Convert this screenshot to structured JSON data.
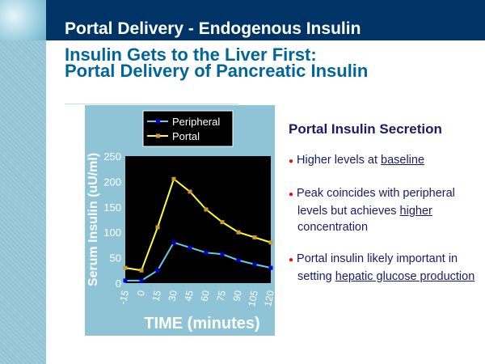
{
  "header": {
    "title": "Portal Delivery - Endogenous Insulin"
  },
  "subtitle": {
    "line1": "Insulin Gets to the Liver First:",
    "line2": "Portal Delivery of Pancreatic Insulin"
  },
  "chart_data": {
    "type": "line",
    "xlabel": "TIME (minutes)",
    "ylabel": "Serum Insulin (uU/ml)",
    "categories": [
      "-15",
      "0",
      "15",
      "30",
      "45",
      "60",
      "75",
      "90",
      "105",
      "120"
    ],
    "ylim": [
      0,
      250
    ],
    "yticks": [
      "0",
      "50",
      "100",
      "150",
      "200",
      "250"
    ],
    "legend_position": "top",
    "series": [
      {
        "name": "Peripheral",
        "color": "#66ccee",
        "marker_color": "#0000cc",
        "values": [
          5,
          5,
          25,
          80,
          70,
          60,
          57,
          45,
          37,
          30
        ]
      },
      {
        "name": "Portal",
        "color": "#ffff33",
        "marker_color": "#cc9933",
        "values": [
          30,
          25,
          110,
          205,
          180,
          145,
          120,
          100,
          90,
          80
        ]
      }
    ]
  },
  "panel": {
    "heading": "Portal Insulin Secretion",
    "bullets": [
      {
        "segments": [
          {
            "text": "Higher levels at ",
            "u": false
          },
          {
            "text": "baseline",
            "u": true
          }
        ]
      },
      {
        "segments": [
          {
            "text": "Peak coincides with peripheral levels but achieves ",
            "u": false
          },
          {
            "text": "higher",
            "u": true
          },
          {
            "text": " concentration",
            "u": false
          }
        ]
      },
      {
        "segments": [
          {
            "text": "Portal insulin likely important in setting ",
            "u": false
          },
          {
            "text": "hepatic glucose production",
            "u": true
          }
        ]
      }
    ]
  }
}
